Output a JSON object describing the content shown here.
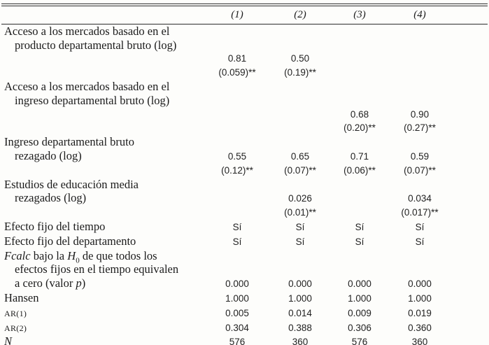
{
  "header": {
    "c1": "(1)",
    "c2": "(2)",
    "c3": "(3)",
    "c4": "(4)"
  },
  "rows": {
    "access_product": {
      "label1": "Acceso a los mercados basado en el",
      "label2": "producto departamental bruto (log)",
      "coef": {
        "c1": "0.81",
        "c2": "0.50"
      },
      "se": {
        "c1": "(0.059)**",
        "c2": "(0.19)**"
      }
    },
    "access_income": {
      "label1": "Acceso a los mercados basado en el",
      "label2": "ingreso departamental bruto (log)",
      "coef": {
        "c3": "0.68",
        "c4": "0.90"
      },
      "se": {
        "c3": "(0.20)**",
        "c4": "(0.27)**"
      }
    },
    "lagged_income": {
      "label1": "Ingreso departamental bruto",
      "label2": "rezagado (log)",
      "coef": {
        "c1": "0.55",
        "c2": "0.65",
        "c3": "0.71",
        "c4": "0.59"
      },
      "se": {
        "c1": "(0.12)**",
        "c2": "(0.07)**",
        "c3": "(0.06)**",
        "c4": "(0.07)**"
      }
    },
    "education": {
      "label1": "Estudios de educación media",
      "label2": "rezagados (log)",
      "coef": {
        "c2": "0.026",
        "c4": "0.034"
      },
      "se": {
        "c2": "(0.01)**",
        "c4": "(0.017)**"
      }
    },
    "time_fe": {
      "label": "Efecto fijo del tiempo",
      "values": {
        "c1": "Sí",
        "c2": "Sí",
        "c3": "Sí",
        "c4": "Sí"
      }
    },
    "dept_fe": {
      "label": "Efecto fijo del departamento",
      "values": {
        "c1": "Sí",
        "c2": "Sí",
        "c3": "Sí",
        "c4": "Sí"
      }
    },
    "fcalc": {
      "label1_html": "<i>Fcalc</i> bajo la <i>H</i><sub>0</sub> de que todos los",
      "label2": "efectos fijos en el tiempo equivalen",
      "label3_html": "a cero (valor <i>p</i>)",
      "values": {
        "c1": "0.000",
        "c2": "0.000",
        "c3": "0.000",
        "c4": "0.000"
      }
    },
    "hansen": {
      "label": "Hansen",
      "values": {
        "c1": "1.000",
        "c2": "1.000",
        "c3": "1.000",
        "c4": "1.000"
      }
    },
    "ar1": {
      "label": "AR(1)",
      "values": {
        "c1": "0.005",
        "c2": "0.014",
        "c3": "0.009",
        "c4": "0.019"
      }
    },
    "ar2": {
      "label": "AR(2)",
      "values": {
        "c1": "0.304",
        "c2": "0.388",
        "c3": "0.306",
        "c4": "0.360"
      }
    },
    "n": {
      "label": "N",
      "values": {
        "c1": "576",
        "c2": "360",
        "c3": "576",
        "c4": "360"
      }
    }
  }
}
